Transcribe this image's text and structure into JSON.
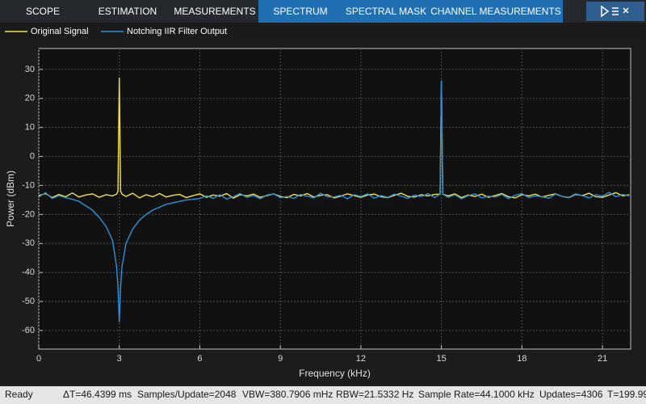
{
  "toolbar": {
    "tabs": [
      "SCOPE",
      "ESTIMATION",
      "MEASUREMENTS",
      "SPECTRUM",
      "SPECTRAL MASK",
      "CHANNEL MEASUREMENTS"
    ]
  },
  "chart_data": {
    "type": "line",
    "xlabel": "Frequency (kHz)",
    "ylabel": "Power (dBm)",
    "x": [
      0,
      0.25,
      0.5,
      0.75,
      1,
      1.25,
      1.5,
      1.75,
      2,
      2.25,
      2.5,
      2.75,
      2.9,
      2.95,
      3,
      3.05,
      3.1,
      3.25,
      3.5,
      3.75,
      4,
      4.25,
      4.5,
      4.75,
      5,
      5.25,
      5.5,
      5.75,
      6,
      6.25,
      6.5,
      6.75,
      7,
      7.25,
      7.5,
      7.75,
      8,
      8.25,
      8.5,
      8.75,
      9,
      9.25,
      9.5,
      9.75,
      10,
      10.25,
      10.5,
      10.75,
      11,
      11.25,
      11.5,
      11.75,
      12,
      12.25,
      12.5,
      12.75,
      13,
      13.25,
      13.5,
      13.75,
      14,
      14.25,
      14.5,
      14.75,
      14.95,
      15,
      15.05,
      15.25,
      15.5,
      15.75,
      16,
      16.25,
      16.5,
      16.75,
      17,
      17.25,
      17.5,
      17.75,
      18,
      18.25,
      18.5,
      18.75,
      19,
      19.25,
      19.5,
      19.75,
      20,
      20.25,
      20.5,
      20.75,
      21,
      21.25,
      21.5,
      21.75,
      22
    ],
    "series": [
      {
        "name": "Original Signal",
        "color": "#f2e24a",
        "values": [
          -13.5,
          -12.8,
          -14.2,
          -13.1,
          -13.9,
          -12.6,
          -14,
          -13.3,
          -12.9,
          -14.1,
          -13.2,
          -13.6,
          -13,
          -12,
          27,
          -12,
          -13,
          -13.8,
          -12.7,
          -14.3,
          -13.2,
          -13.9,
          -12.8,
          -14,
          -13.4,
          -13.1,
          -14.2,
          -13.5,
          -12.9,
          -14.1,
          -13.3,
          -13.7,
          -12.8,
          -14.4,
          -13.2,
          -13.6,
          -13,
          -14.1,
          -13.5,
          -12.9,
          -13.8,
          -14.2,
          -13.1,
          -13.6,
          -12.8,
          -14,
          -13.4,
          -13.2,
          -14.3,
          -13.7,
          -12.9,
          -13.5,
          -14.1,
          -13.3,
          -13,
          -13.9,
          -14.2,
          -13.4,
          -12.7,
          -13.8,
          -14,
          -13.2,
          -13.6,
          -13.1,
          -13,
          26,
          -13,
          -13.6,
          -12.9,
          -14.2,
          -13.3,
          -13.8,
          -13,
          -14.1,
          -13.5,
          -12.8,
          -13.9,
          -14.3,
          -13.2,
          -13.6,
          -13,
          -14,
          -13.4,
          -12.9,
          -13.8,
          -14.2,
          -13.1,
          -13.5,
          -12.7,
          -13.9,
          -14.1,
          -13.3,
          -12.5,
          -13.6,
          -13.2
        ]
      },
      {
        "name": "Notching IIR Filter Output",
        "color": "#2f8fd8",
        "values": [
          -14,
          -12.5,
          -14.5,
          -13.5,
          -14.2,
          -14.8,
          -15.5,
          -17,
          -18.5,
          -21,
          -24,
          -29,
          -38,
          -45,
          -57,
          -45,
          -38,
          -30,
          -25,
          -22,
          -20,
          -18.5,
          -17.5,
          -16.5,
          -16,
          -15.5,
          -15,
          -14.8,
          -14.5,
          -13.6,
          -14.4,
          -13.2,
          -14.7,
          -13.9,
          -12.8,
          -14.1,
          -13.5,
          -14.6,
          -13.3,
          -12.9,
          -14.2,
          -13.8,
          -14.5,
          -13.1,
          -13.7,
          -14.3,
          -12.7,
          -13.9,
          -14,
          -13.4,
          -14.6,
          -13.2,
          -13.8,
          -12.9,
          -14.4,
          -13.5,
          -14.1,
          -13,
          -13.7,
          -14.5,
          -13.3,
          -13.9,
          -12.8,
          -14.2,
          -13,
          26,
          -13,
          -14.1,
          -13.2,
          -14.6,
          -13.5,
          -12.9,
          -14.3,
          -13.7,
          -14,
          -13.1,
          -14.5,
          -13.4,
          -12.8,
          -14.2,
          -13.6,
          -13.9,
          -14.4,
          -13,
          -13.8,
          -14.1,
          -12.9,
          -13.5,
          -14.3,
          -13.2,
          -13.7,
          -12.4,
          -13.9,
          -13.1,
          -13.6
        ]
      }
    ],
    "xlim": [
      0,
      22.05
    ],
    "ylim": [
      -66.4,
      37.2
    ],
    "xticks": [
      0,
      3,
      6,
      9,
      12,
      15,
      18,
      21
    ],
    "yticks": [
      30,
      20,
      10,
      0,
      -10,
      -20,
      -30,
      -40,
      -50,
      -60
    ],
    "grid": true
  },
  "status": {
    "state": "Ready",
    "items": [
      "ΔT=46.4399 ms",
      "Samples/Update=2048",
      "VBW=380.7906 mHz",
      "RBW=21.5332 Hz",
      "Sample Rate=44.1000 kHz",
      "Updates=4306",
      "T=199.99"
    ]
  }
}
